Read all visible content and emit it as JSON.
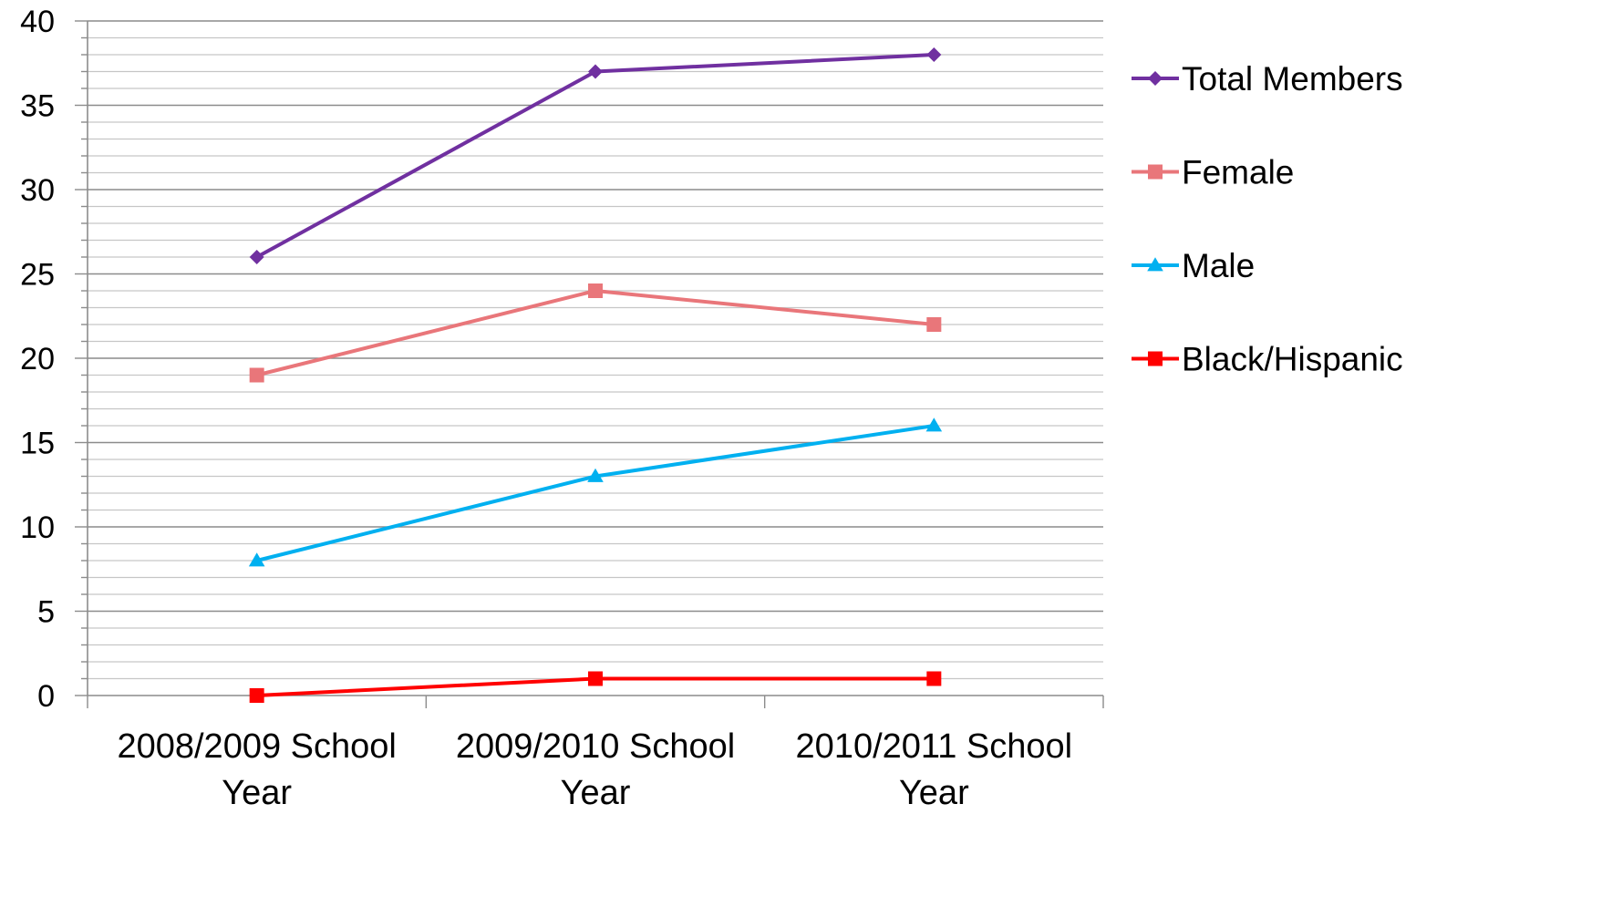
{
  "chart_data": {
    "type": "line",
    "categories": [
      [
        "2008/2009 School",
        "Year"
      ],
      [
        "2009/2010 School",
        "Year"
      ],
      [
        "2010/2011 School",
        "Year"
      ]
    ],
    "ylim": [
      0,
      40
    ],
    "y_major_step": 5,
    "y_minor_step": 1,
    "grid": true,
    "legend_position": "right",
    "series": [
      {
        "name": "Total Members",
        "values": [
          26,
          37,
          38
        ],
        "color": "#7030A0",
        "marker": "diamond"
      },
      {
        "name": "Female",
        "values": [
          19,
          24,
          22
        ],
        "color": "#E9767A",
        "marker": "square"
      },
      {
        "name": "Male",
        "values": [
          8,
          13,
          16
        ],
        "color": "#00B0F0",
        "marker": "triangle"
      },
      {
        "name": "Black/Hispanic",
        "values": [
          0,
          1,
          1
        ],
        "color": "#FF0000",
        "marker": "square"
      }
    ]
  }
}
